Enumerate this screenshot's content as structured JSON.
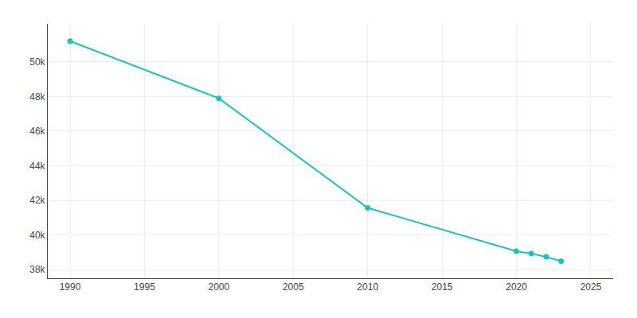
{
  "chart_data": {
    "type": "line",
    "x": [
      1990,
      2000,
      2010,
      2020,
      2021,
      2022,
      2023
    ],
    "values": [
      51201,
      47899,
      41566,
      39063,
      38928,
      38735,
      38490
    ],
    "color": "#20c0c0",
    "marker": "circle",
    "xlim": [
      1988.5,
      2026.5
    ],
    "ylim": [
      37500,
      52200
    ],
    "xticks": [
      1990,
      1995,
      2000,
      2005,
      2010,
      2015,
      2020,
      2025
    ],
    "yticks": [
      {
        "value": 38000,
        "label": "38k"
      },
      {
        "value": 40000,
        "label": "40k"
      },
      {
        "value": 42000,
        "label": "42k"
      },
      {
        "value": 44000,
        "label": "44k"
      },
      {
        "value": 46000,
        "label": "46k"
      },
      {
        "value": 48000,
        "label": "48k"
      },
      {
        "value": 50000,
        "label": "50k"
      }
    ],
    "grid": true
  }
}
